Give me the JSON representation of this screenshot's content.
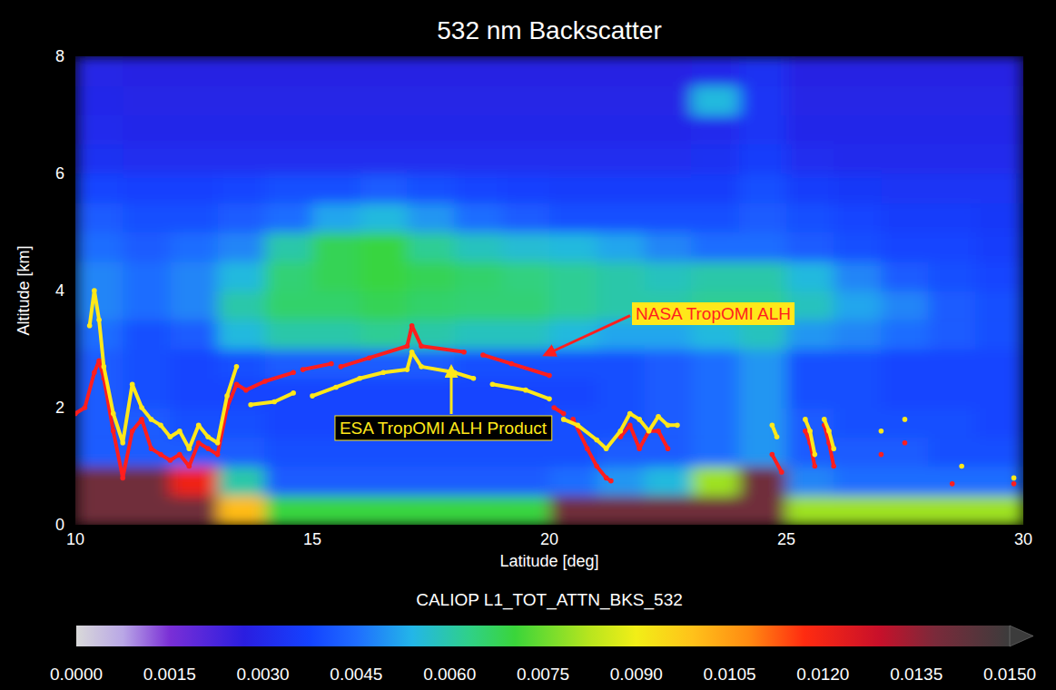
{
  "chart_data": {
    "type": "heatmap",
    "title": "532 nm Backscatter",
    "x_label": "Latitude [deg]",
    "y_label": "Altitude [km]",
    "xlim": [
      10,
      30
    ],
    "ylim": [
      0,
      8
    ],
    "xticks": [
      10,
      15,
      20,
      25,
      30
    ],
    "yticks": [
      0,
      2,
      4,
      6,
      8
    ],
    "x_edges": [
      10,
      11,
      12,
      13,
      14,
      15,
      16,
      17,
      18,
      19,
      20,
      21,
      22,
      23,
      24,
      25,
      26,
      27,
      28,
      29,
      30
    ],
    "y_edges": [
      0,
      0.5,
      1,
      1.5,
      2,
      2.5,
      3,
      3.5,
      4,
      4.5,
      5,
      5.5,
      6,
      6.5,
      7,
      7.5,
      8
    ],
    "cells": [
      [
        0.014,
        0.014,
        0.014,
        0.01,
        0.007,
        0.007,
        0.007,
        0.007,
        0.007,
        0.007,
        0.014,
        0.014,
        0.014,
        0.014,
        0.014,
        0.008,
        0.008,
        0.008,
        0.008,
        0.008
      ],
      [
        0.014,
        0.014,
        0.012,
        0.006,
        0.0042,
        0.0042,
        0.0042,
        0.0042,
        0.0042,
        0.0042,
        0.0045,
        0.005,
        0.0055,
        0.008,
        0.014,
        0.0048,
        0.0045,
        0.0045,
        0.0045,
        0.0045
      ],
      [
        0.0042,
        0.0042,
        0.0042,
        0.0042,
        0.004,
        0.004,
        0.004,
        0.004,
        0.004,
        0.004,
        0.004,
        0.0042,
        0.0042,
        0.0045,
        0.005,
        0.0042,
        0.0042,
        0.0042,
        0.004,
        0.004
      ],
      [
        0.0042,
        0.0042,
        0.004,
        0.004,
        0.0038,
        0.0038,
        0.0038,
        0.0038,
        0.0038,
        0.0038,
        0.004,
        0.004,
        0.0042,
        0.0045,
        0.005,
        0.0042,
        0.004,
        0.004,
        0.004,
        0.0038
      ],
      [
        0.0042,
        0.004,
        0.0038,
        0.0038,
        0.0038,
        0.0038,
        0.0038,
        0.0038,
        0.0038,
        0.0038,
        0.0038,
        0.004,
        0.0042,
        0.0045,
        0.005,
        0.004,
        0.004,
        0.0038,
        0.0038,
        0.0038
      ],
      [
        0.0042,
        0.004,
        0.0038,
        0.004,
        0.0042,
        0.0042,
        0.0042,
        0.0042,
        0.004,
        0.004,
        0.004,
        0.004,
        0.0042,
        0.0045,
        0.005,
        0.004,
        0.004,
        0.0038,
        0.0038,
        0.0038
      ],
      [
        0.0045,
        0.004,
        0.0042,
        0.0055,
        0.006,
        0.006,
        0.0062,
        0.006,
        0.0058,
        0.0058,
        0.0055,
        0.0052,
        0.0052,
        0.0055,
        0.0058,
        0.005,
        0.0048,
        0.0045,
        0.0042,
        0.004
      ],
      [
        0.0048,
        0.0045,
        0.0048,
        0.006,
        0.0066,
        0.0066,
        0.0068,
        0.0066,
        0.0065,
        0.0065,
        0.0062,
        0.006,
        0.006,
        0.0062,
        0.0062,
        0.0058,
        0.0052,
        0.0048,
        0.0042,
        0.004
      ],
      [
        0.0048,
        0.0045,
        0.0048,
        0.0055,
        0.0065,
        0.0068,
        0.007,
        0.0068,
        0.0066,
        0.0064,
        0.0062,
        0.006,
        0.0058,
        0.006,
        0.006,
        0.0055,
        0.0048,
        0.0042,
        0.004,
        0.0038
      ],
      [
        0.0045,
        0.0042,
        0.0045,
        0.0048,
        0.006,
        0.0068,
        0.007,
        0.0062,
        0.0058,
        0.0056,
        0.0055,
        0.0052,
        0.0048,
        0.0045,
        0.0045,
        0.0042,
        0.004,
        0.0038,
        0.0038,
        0.0036
      ],
      [
        0.0042,
        0.004,
        0.004,
        0.0042,
        0.0045,
        0.0052,
        0.0055,
        0.005,
        0.0045,
        0.0042,
        0.004,
        0.004,
        0.004,
        0.004,
        0.0042,
        0.004,
        0.0038,
        0.0036,
        0.0036,
        0.0035
      ],
      [
        0.0038,
        0.0037,
        0.0037,
        0.0038,
        0.004,
        0.004,
        0.0042,
        0.004,
        0.0038,
        0.0037,
        0.0036,
        0.0036,
        0.0036,
        0.0036,
        0.004,
        0.0036,
        0.0035,
        0.0034,
        0.0034,
        0.0034
      ],
      [
        0.0033,
        0.0032,
        0.0032,
        0.0032,
        0.0032,
        0.0032,
        0.0032,
        0.0032,
        0.0032,
        0.0032,
        0.0032,
        0.0032,
        0.0032,
        0.0033,
        0.0036,
        0.0032,
        0.0031,
        0.0031,
        0.0031,
        0.0031
      ],
      [
        0.0031,
        0.003,
        0.003,
        0.003,
        0.003,
        0.003,
        0.003,
        0.003,
        0.003,
        0.003,
        0.003,
        0.003,
        0.003,
        0.0031,
        0.0034,
        0.003,
        0.003,
        0.003,
        0.003,
        0.003
      ],
      [
        0.003,
        0.0029,
        0.0029,
        0.0029,
        0.0029,
        0.0029,
        0.0029,
        0.0029,
        0.0029,
        0.0029,
        0.0029,
        0.0029,
        0.0029,
        0.0055,
        0.0034,
        0.0029,
        0.0029,
        0.0029,
        0.0029,
        0.0029
      ],
      [
        0.0029,
        0.0028,
        0.0028,
        0.0028,
        0.0028,
        0.0028,
        0.0028,
        0.0028,
        0.0028,
        0.0028,
        0.0028,
        0.0028,
        0.0028,
        0.003,
        0.0033,
        0.0028,
        0.0028,
        0.0028,
        0.0028,
        0.0028
      ]
    ],
    "colorbar": {
      "label": "CALIOP L1_TOT_ATTN_BKS_532",
      "range": [
        0,
        0.015
      ],
      "ticks": [
        {
          "value": 0,
          "label": "0.0000"
        },
        {
          "value": 0.0015,
          "label": "0.0015"
        },
        {
          "value": 0.003,
          "label": "0.0030"
        },
        {
          "value": 0.0045,
          "label": "0.0045"
        },
        {
          "value": 0.006,
          "label": "0.0060"
        },
        {
          "value": 0.0075,
          "label": "0.0075"
        },
        {
          "value": 0.009,
          "label": "0.0090"
        },
        {
          "value": 0.0105,
          "label": "0.0105"
        },
        {
          "value": 0.012,
          "label": "0.0120"
        },
        {
          "value": 0.0135,
          "label": "0.0135"
        },
        {
          "value": 0.015,
          "label": "0.0150"
        }
      ]
    },
    "series": [
      {
        "name": "NASA TropOMI ALH",
        "type": "line",
        "marker": "dot",
        "line_style": "solid",
        "color": "#ff1e1e",
        "x": [
          10.0,
          10.2,
          10.4,
          10.5,
          10.6,
          10.8,
          11.0,
          11.2,
          11.4,
          11.6,
          11.8,
          12.0,
          12.2,
          12.4,
          12.6,
          12.8,
          13.0,
          13.2,
          13.4,
          13.6,
          14.0,
          14.6,
          14.7,
          14.8,
          15.4,
          15.5,
          15.6,
          16.2,
          17.0,
          17.1,
          17.3,
          18.2,
          18.4,
          18.6,
          19.2,
          20.0,
          20.05,
          20.1,
          20.3,
          20.35,
          20.5,
          20.8,
          21.0,
          21.2,
          21.3,
          21.4,
          21.5,
          21.7,
          21.9,
          22.1,
          22.3,
          22.5,
          22.6,
          24.7,
          24.9,
          25.0,
          25.4,
          25.5,
          25.6,
          25.7,
          25.8,
          25.9,
          26.0,
          26.1,
          27.0,
          27.1,
          27.5,
          27.6,
          28.5,
          28.6,
          29.8
        ],
        "values": [
          1.9,
          2.0,
          2.6,
          2.8,
          2.5,
          1.6,
          0.8,
          1.6,
          1.8,
          1.3,
          1.2,
          1.1,
          1.2,
          1.0,
          1.4,
          1.3,
          1.2,
          2.0,
          2.4,
          2.3,
          2.45,
          2.6,
          null,
          2.65,
          2.75,
          null,
          2.7,
          2.85,
          3.05,
          3.4,
          3.05,
          2.95,
          null,
          2.9,
          2.75,
          2.55,
          null,
          2.0,
          1.9,
          null,
          1.8,
          1.3,
          1.0,
          0.8,
          0.75,
          null,
          1.5,
          1.7,
          1.3,
          1.6,
          1.6,
          1.3,
          null,
          1.2,
          0.9,
          null,
          1.6,
          1.4,
          1.0,
          null,
          1.7,
          1.4,
          1.0,
          null,
          1.2,
          null,
          1.4,
          null,
          0.7,
          null,
          0.7
        ]
      },
      {
        "name": "ESA TropOMI ALH Product",
        "type": "line",
        "marker": "dot",
        "line_style": "solid",
        "color": "#ffe81a",
        "x": [
          10.3,
          10.4,
          10.5,
          10.6,
          10.8,
          11.0,
          11.2,
          11.4,
          11.6,
          11.8,
          12.0,
          12.2,
          12.4,
          12.6,
          12.8,
          13.0,
          13.2,
          13.4,
          13.5,
          13.7,
          14.2,
          14.6,
          14.7,
          15.0,
          15.5,
          16.0,
          16.5,
          17.0,
          17.1,
          17.3,
          18.0,
          18.4,
          18.5,
          18.8,
          19.5,
          20.0,
          20.05,
          20.3,
          20.6,
          21.0,
          21.2,
          21.5,
          21.7,
          21.9,
          22.1,
          22.3,
          22.5,
          22.7,
          22.8,
          24.7,
          24.8,
          24.9,
          25.4,
          25.5,
          25.6,
          25.7,
          25.8,
          25.9,
          26.0,
          26.1,
          27.0,
          27.1,
          27.5,
          27.6,
          28.7,
          28.8,
          29.8
        ],
        "values": [
          3.4,
          4.0,
          3.5,
          2.7,
          1.9,
          1.4,
          2.4,
          2.0,
          1.8,
          1.7,
          1.5,
          1.6,
          1.3,
          1.7,
          1.5,
          1.4,
          2.2,
          2.7,
          null,
          2.05,
          2.1,
          2.25,
          null,
          2.2,
          2.35,
          2.5,
          2.6,
          2.65,
          2.95,
          2.7,
          2.6,
          2.5,
          null,
          2.4,
          2.3,
          2.15,
          null,
          1.8,
          1.7,
          1.45,
          1.3,
          1.6,
          1.9,
          1.8,
          1.6,
          1.85,
          1.7,
          1.7,
          null,
          1.7,
          1.5,
          null,
          1.8,
          1.6,
          1.2,
          null,
          1.8,
          1.6,
          1.3,
          null,
          1.6,
          null,
          1.8,
          null,
          1.0,
          null,
          0.8
        ]
      }
    ]
  }
}
